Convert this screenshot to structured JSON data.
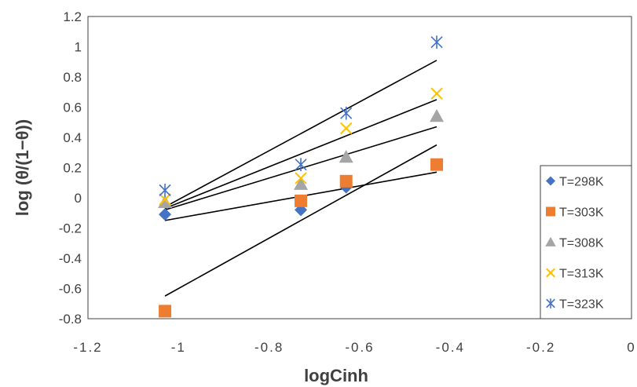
{
  "chart_data": {
    "type": "scatter",
    "xlabel": "logCinh",
    "ylabel": "log (θ/(1−θ))",
    "xlim": [
      -1.2,
      0
    ],
    "ylim": [
      -0.8,
      1.2
    ],
    "x_ticks": [
      -1.2,
      -1,
      -0.8,
      -0.6,
      -0.4,
      -0.2,
      0
    ],
    "x_tick_labels": [
      "-1.2",
      "-1",
      "-0.8",
      "-0.6",
      "-0.4",
      "-0.2",
      "0"
    ],
    "y_ticks": [
      -0.8,
      -0.6,
      -0.4,
      -0.2,
      0,
      0.2,
      0.4,
      0.6,
      0.8,
      1,
      1.2
    ],
    "y_tick_labels": [
      "-0.8",
      "-0.6",
      "-0.4",
      "-0.2",
      "0",
      "0.2",
      "0.4",
      "0.6",
      "0.8",
      "1",
      "1.2"
    ],
    "grid": false,
    "legend_position": "bottom-right",
    "series": [
      {
        "name": "T=298K",
        "marker": "diamond",
        "color": "#4472C4",
        "x": [
          -1.03,
          -0.73,
          -0.63,
          -0.43
        ],
        "y": [
          -0.11,
          -0.08,
          0.07,
          0.22
        ],
        "fit": {
          "x": [
            -1.03,
            -0.43
          ],
          "y": [
            -0.15,
            0.17
          ]
        }
      },
      {
        "name": "T=303K",
        "marker": "square",
        "color": "#ED7D31",
        "x": [
          -1.03,
          -0.73,
          -0.63,
          -0.43
        ],
        "y": [
          -0.75,
          -0.02,
          0.11,
          0.22
        ],
        "fit": {
          "x": [
            -1.03,
            -0.43
          ],
          "y": [
            -0.65,
            0.35
          ]
        }
      },
      {
        "name": "T=308K",
        "marker": "triangle",
        "color": "#A5A5A5",
        "x": [
          -1.03,
          -0.73,
          -0.63,
          -0.43
        ],
        "y": [
          -0.03,
          0.09,
          0.27,
          0.54
        ],
        "fit": {
          "x": [
            -1.03,
            -0.43
          ],
          "y": [
            -0.08,
            0.47
          ]
        }
      },
      {
        "name": "T=313K",
        "marker": "x",
        "color": "#FFC000",
        "x": [
          -1.03,
          -0.73,
          -0.63,
          -0.43
        ],
        "y": [
          -0.01,
          0.13,
          0.46,
          0.69
        ],
        "fit": {
          "x": [
            -1.03,
            -0.43
          ],
          "y": [
            -0.07,
            0.65
          ]
        }
      },
      {
        "name": "T=323K",
        "marker": "star",
        "color": "#4472C4",
        "x": [
          -1.03,
          -0.73,
          -0.63,
          -0.43
        ],
        "y": [
          0.05,
          0.22,
          0.56,
          1.03
        ],
        "fit": {
          "x": [
            -1.03,
            -0.43
          ],
          "y": [
            -0.06,
            0.91
          ]
        }
      }
    ]
  }
}
